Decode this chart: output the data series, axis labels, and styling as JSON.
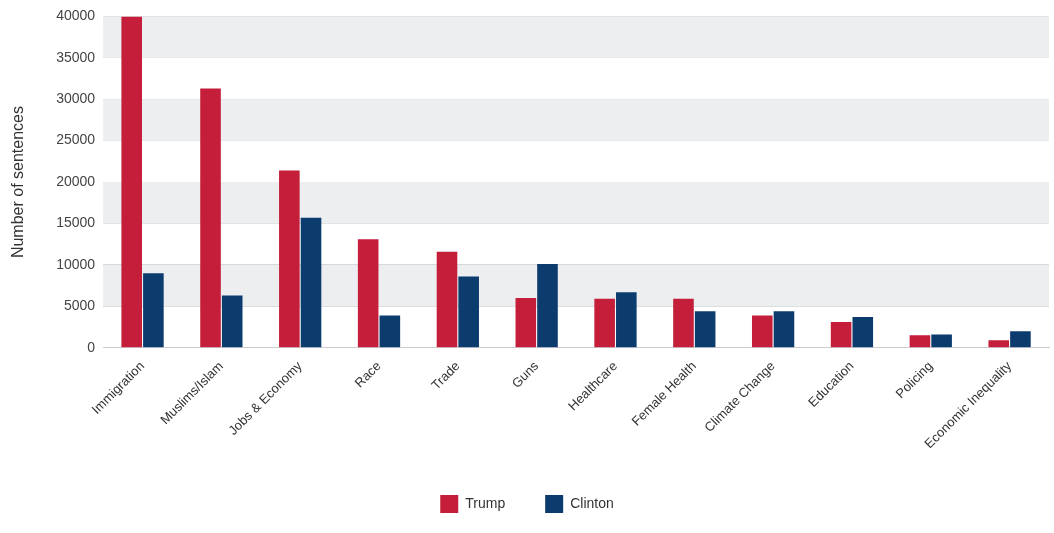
{
  "chart_data": {
    "type": "bar",
    "ylabel": "Number of sentences",
    "categories": [
      "Immigration",
      "Muslims/Islam",
      "Jobs & Economy",
      "Race",
      "Trade",
      "Guns",
      "Healthcare",
      "Female Health",
      "Climate Change",
      "Education",
      "Policing",
      "Economic Inequality"
    ],
    "series": [
      {
        "name": "Trump",
        "color": "#c41e3a",
        "values": [
          40000,
          31300,
          21400,
          13100,
          11600,
          6000,
          5900,
          5900,
          3900,
          3100,
          1500,
          900
        ]
      },
      {
        "name": "Clinton",
        "color": "#0c3b6e",
        "values": [
          9000,
          6300,
          15700,
          3900,
          8600,
          10100,
          6700,
          4400,
          4400,
          3700,
          1600,
          2000
        ]
      }
    ],
    "ylim": [
      0,
      40000
    ],
    "yticks": [
      0,
      5000,
      10000,
      15000,
      20000,
      25000,
      30000,
      35000,
      40000
    ],
    "grid": "y",
    "legend": "bottom"
  }
}
